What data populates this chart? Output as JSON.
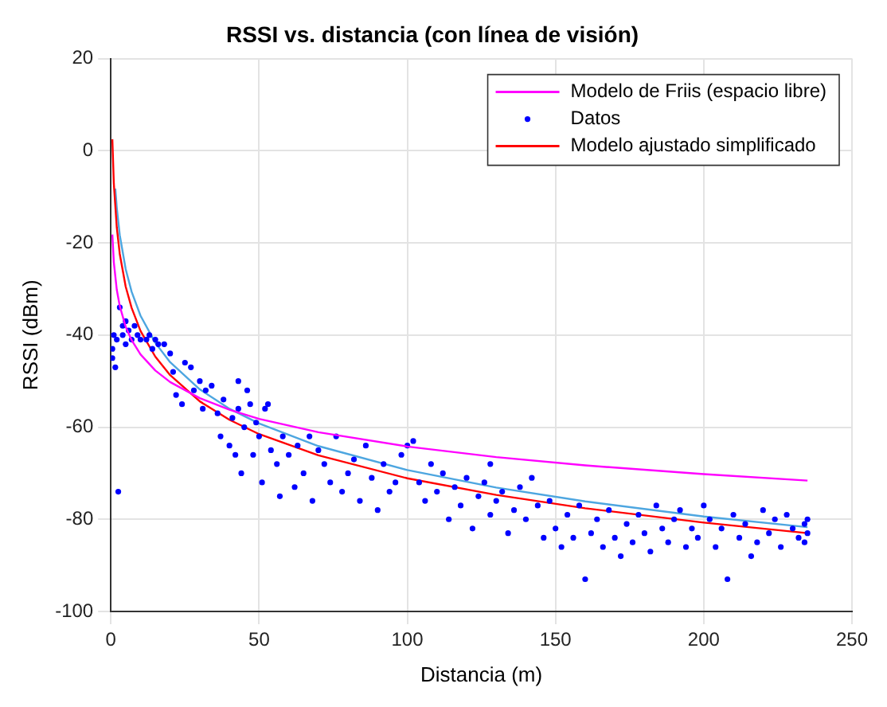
{
  "chart_data": {
    "type": "scatter",
    "title": "RSSI vs. distancia (con línea de visión)",
    "xlabel": "Distancia (m)",
    "ylabel": "RSSI (dBm)",
    "xlim": [
      0,
      250
    ],
    "xticks": [
      0,
      50,
      100,
      150,
      200,
      250
    ],
    "ylim": [
      -100,
      20
    ],
    "yticks": [
      -100,
      -80,
      -60,
      -40,
      -20,
      0,
      20
    ],
    "grid": true,
    "legend": "top right",
    "series": [
      {
        "name": "Modelo de Friis (espacio libre)",
        "type": "line",
        "color": "#ff00ff",
        "marker": "none",
        "x": [
          0.5,
          1,
          2,
          3,
          5,
          7,
          10,
          15,
          20,
          30,
          40,
          50,
          70,
          100,
          130,
          160,
          200,
          235
        ],
        "values": [
          -18.2,
          -24.2,
          -30.2,
          -33.7,
          -38.2,
          -41.1,
          -44.2,
          -47.7,
          -50.2,
          -53.7,
          -56.2,
          -58.2,
          -61.1,
          -64.2,
          -66.5,
          -68.3,
          -70.2,
          -71.6
        ]
      },
      {
        "name": "Datos",
        "type": "scatter",
        "color": "#0000ff",
        "marker": "circle",
        "x": [
          0.5,
          0.5,
          1,
          1.5,
          2,
          2.5,
          3,
          4,
          4,
          5,
          5,
          6,
          7,
          8,
          9,
          10,
          12,
          13,
          14,
          15,
          16,
          18,
          20,
          21,
          22,
          24,
          25,
          27,
          28,
          30,
          31,
          32,
          34,
          36,
          37,
          38,
          40,
          41,
          42,
          43,
          43,
          44,
          45,
          46,
          47,
          48,
          49,
          50,
          51,
          52,
          53,
          54,
          56,
          57,
          58,
          60,
          62,
          63,
          65,
          67,
          68,
          70,
          72,
          74,
          76,
          78,
          80,
          82,
          84,
          86,
          88,
          90,
          92,
          94,
          96,
          98,
          100,
          102,
          104,
          106,
          108,
          110,
          112,
          114,
          116,
          118,
          120,
          122,
          124,
          126,
          128,
          128,
          130,
          132,
          134,
          136,
          138,
          140,
          142,
          144,
          146,
          148,
          150,
          152,
          154,
          156,
          158,
          160,
          162,
          164,
          166,
          168,
          170,
          172,
          174,
          176,
          178,
          180,
          182,
          184,
          186,
          188,
          190,
          192,
          194,
          196,
          198,
          200,
          202,
          204,
          206,
          208,
          210,
          212,
          214,
          216,
          218,
          220,
          222,
          224,
          226,
          228,
          230,
          232,
          234,
          234,
          235,
          235
        ],
        "values": [
          -45,
          -43,
          -40,
          -47,
          -41,
          -74,
          -34,
          -38,
          -40,
          -37,
          -42,
          -39,
          -41,
          -38,
          -40,
          -41,
          -41,
          -40,
          -43,
          -41,
          -42,
          -42,
          -44,
          -48,
          -53,
          -55,
          -46,
          -47,
          -52,
          -50,
          -56,
          -52,
          -51,
          -57,
          -62,
          -54,
          -64,
          -58,
          -66,
          -56,
          -50,
          -70,
          -60,
          -52,
          -55,
          -66,
          -59,
          -62,
          -72,
          -56,
          -55,
          -65,
          -68,
          -75,
          -62,
          -66,
          -73,
          -64,
          -70,
          -62,
          -76,
          -65,
          -68,
          -72,
          -62,
          -74,
          -70,
          -67,
          -76,
          -64,
          -71,
          -78,
          -68,
          -74,
          -72,
          -66,
          -64,
          -63,
          -72,
          -76,
          -68,
          -74,
          -70,
          -80,
          -73,
          -77,
          -71,
          -82,
          -75,
          -72,
          -79,
          -68,
          -76,
          -74,
          -83,
          -78,
          -73,
          -80,
          -71,
          -77,
          -84,
          -76,
          -82,
          -86,
          -79,
          -84,
          -77,
          -93,
          -83,
          -80,
          -86,
          -78,
          -84,
          -88,
          -81,
          -85,
          -79,
          -83,
          -87,
          -77,
          -82,
          -85,
          -80,
          -78,
          -86,
          -82,
          -84,
          -77,
          -80,
          -86,
          -82,
          -93,
          -79,
          -84,
          -81,
          -88,
          -85,
          -78,
          -83,
          -80,
          -86,
          -79,
          -82,
          -84,
          -81,
          -85,
          -80,
          -83
        ]
      },
      {
        "name": "Modelo ajustado simplificado",
        "type": "line",
        "color": "#ff0000",
        "marker": "none",
        "x": [
          0.5,
          1,
          2,
          3,
          5,
          7,
          10,
          15,
          20,
          30,
          40,
          50,
          70,
          100,
          130,
          160,
          200,
          235
        ],
        "values": [
          2.5,
          -7.1,
          -16.7,
          -22.4,
          -29.5,
          -34.1,
          -39.1,
          -44.7,
          -48.7,
          -54.4,
          -58.4,
          -61.5,
          -66.1,
          -71.1,
          -74.7,
          -77.6,
          -80.7,
          -83
        ]
      },
      {
        "type": "line",
        "color": "#4da6e0",
        "marker": "none",
        "x": [
          1.5,
          2,
          3,
          5,
          7,
          10,
          15,
          20,
          30,
          40,
          50,
          70,
          100,
          130,
          160,
          200,
          235
        ],
        "values": [
          -8.2,
          -12.4,
          -18.3,
          -25.7,
          -30.6,
          -35.8,
          -41.7,
          -45.9,
          -51.8,
          -56,
          -59.2,
          -64.1,
          -69.3,
          -73.1,
          -76.1,
          -79.4,
          -81.7
        ]
      }
    ]
  }
}
